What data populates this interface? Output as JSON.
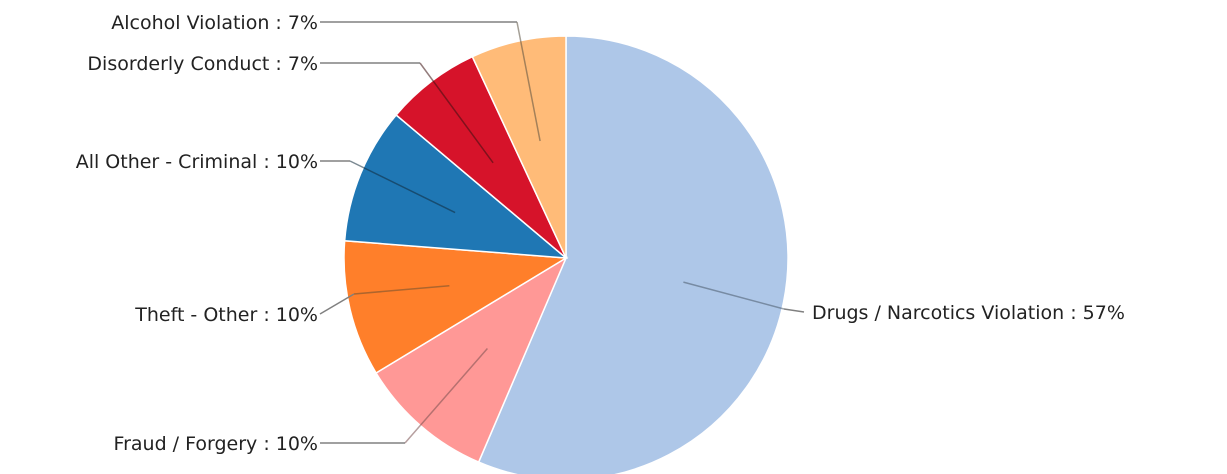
{
  "chart_data": {
    "type": "pie",
    "title": "",
    "label_separator": " : ",
    "slices": [
      {
        "label": "Drugs / Narcotics Violation",
        "value": 57,
        "display": "57%",
        "color": "#aec7e8",
        "leader_color": "#4a5a6a"
      },
      {
        "label": "Fraud / Forgery",
        "value": 10,
        "display": "10%",
        "color": "#ff9896",
        "leader_color": "#7a5050"
      },
      {
        "label": "Theft - Other",
        "value": 10,
        "display": "10%",
        "color": "#ff7f2a",
        "leader_color": "#6b5030"
      },
      {
        "label": "All Other - Criminal",
        "value": 10,
        "display": "10%",
        "color": "#1f77b4",
        "leader_color": "#102a3a"
      },
      {
        "label": "Disorderly Conduct",
        "value": 7,
        "display": "7%",
        "color": "#d6132a",
        "leader_color": "#3a1010"
      },
      {
        "label": "Alcohol Violation",
        "value": 7,
        "display": "7%",
        "color": "#ffbb78",
        "leader_color": "#5a5040"
      }
    ],
    "start_angle_deg": 0,
    "direction": "clockwise",
    "legend": "none",
    "label_mode": "outside-with-leader-lines"
  }
}
